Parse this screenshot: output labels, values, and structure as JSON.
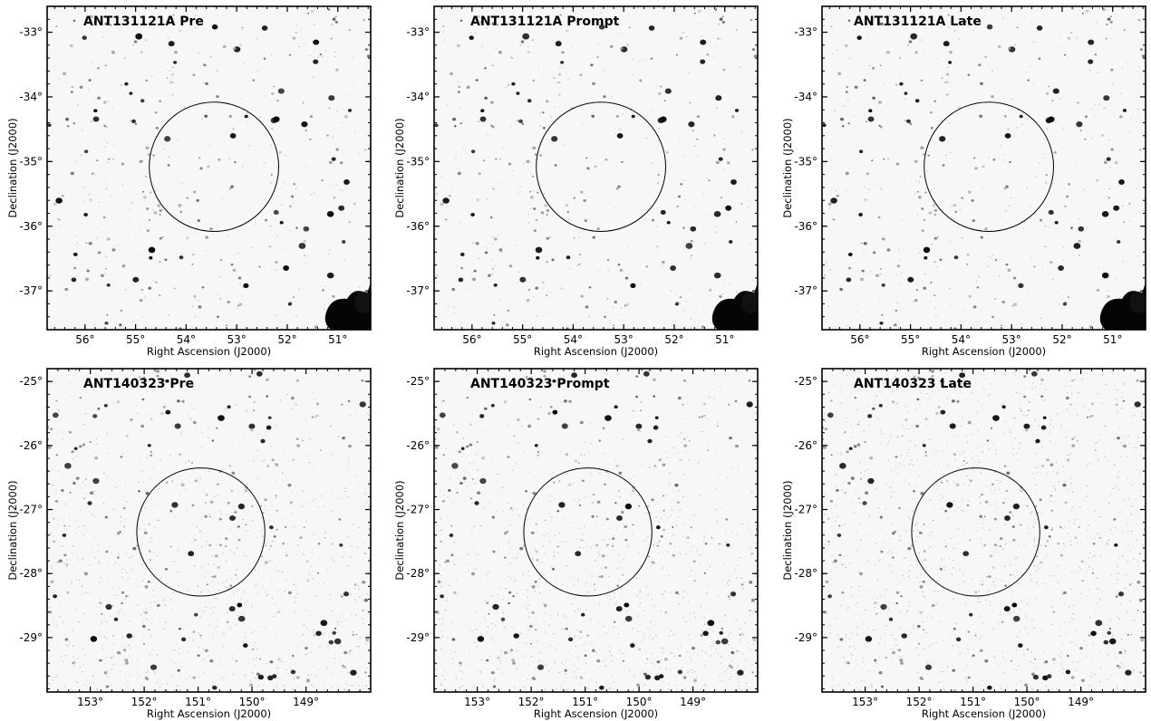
{
  "axis_labels": {
    "x": "Right Ascension (J2000)",
    "y": "Declination (J2000)"
  },
  "rows": [
    {
      "event": "ANT131121A",
      "ra_ticks": [
        "56°",
        "55°",
        "54°",
        "53°",
        "52°",
        "51°"
      ],
      "ra_tick_values": [
        56,
        55,
        54,
        53,
        52,
        51
      ],
      "ra_range": [
        56.75,
        50.35
      ],
      "dec_ticks": [
        "-33°",
        "-34°",
        "-35°",
        "-36°",
        "-37°"
      ],
      "dec_tick_values": [
        -33,
        -34,
        -35,
        -36,
        -37
      ],
      "dec_range": [
        -32.6,
        -37.6
      ],
      "error_circle": {
        "ra_center": 53.45,
        "dec_center": -35.08,
        "radius_deg": 1.0
      },
      "bright_source_corner": "bottom-right",
      "panels": [
        {
          "title": "ANT131121A Pre",
          "phase": "Pre"
        },
        {
          "title": "ANT131121A Prompt",
          "phase": "Prompt"
        },
        {
          "title": "ANT131121A Late",
          "phase": "Late"
        }
      ]
    },
    {
      "event": "ANT140323",
      "ra_ticks": [
        "153°",
        "152°",
        "151°",
        "150°",
        "149°"
      ],
      "ra_tick_values": [
        153,
        152,
        151,
        150,
        149
      ],
      "ra_range": [
        153.8,
        147.8
      ],
      "dec_ticks": [
        "-25°",
        "-26°",
        "-27°",
        "-28°",
        "-29°"
      ],
      "dec_tick_values": [
        -25,
        -26,
        -27,
        -28,
        -29
      ],
      "dec_range": [
        -24.8,
        -29.85
      ],
      "error_circle": {
        "ra_center": 150.95,
        "dec_center": -27.35,
        "radius_deg": 1.0
      },
      "bright_source_corner": "none",
      "panels": [
        {
          "title": "ANT140323 Pre",
          "phase": "Pre"
        },
        {
          "title": "ANT140323 Prompt",
          "phase": "Prompt"
        },
        {
          "title": "ANT140323 Late",
          "phase": "Late"
        }
      ]
    }
  ]
}
